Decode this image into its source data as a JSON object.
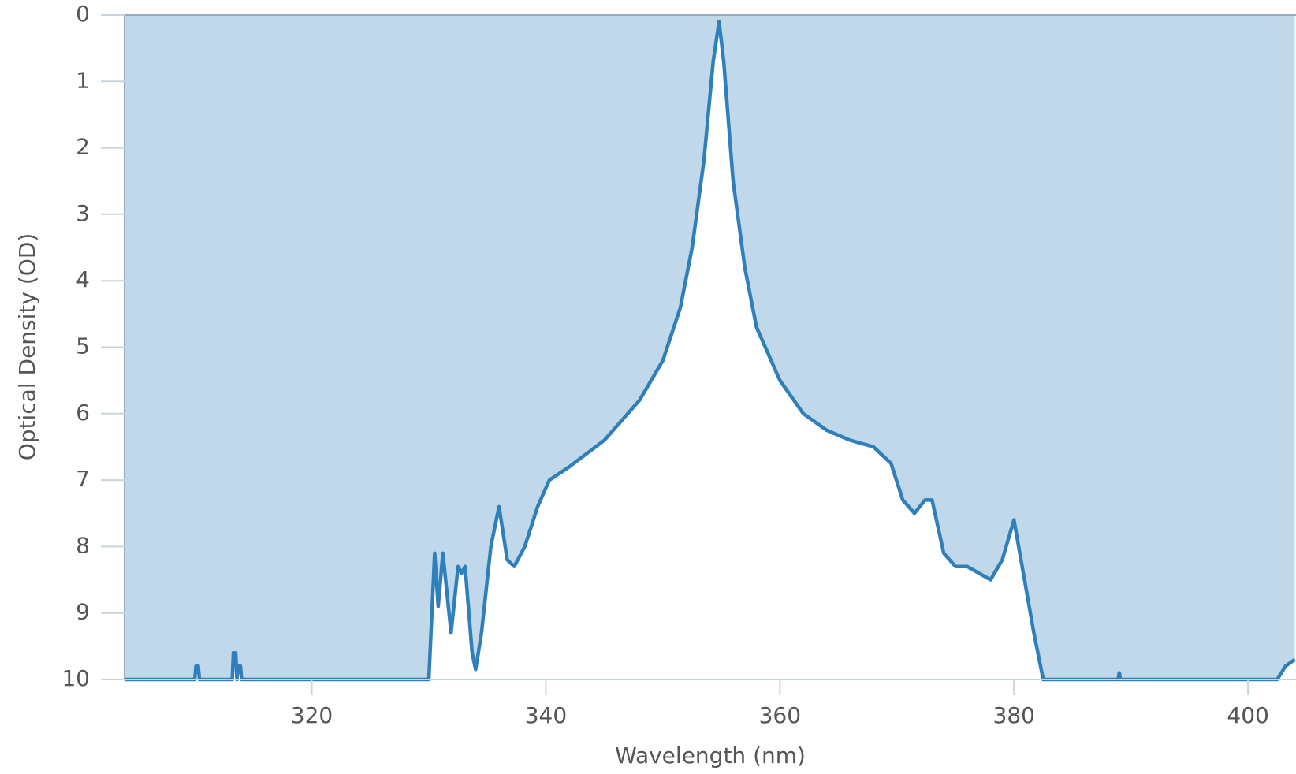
{
  "chart_data": {
    "type": "area",
    "x_label": "Wavelength (nm)",
    "y_label": "Optical Density (OD)",
    "x": [
      304,
      310.0,
      310.1,
      310.3,
      310.4,
      313.2,
      313.3,
      313.5,
      313.6,
      313.7,
      313.9,
      314.0,
      330.0,
      330.5,
      330.8,
      331.2,
      331.9,
      332.5,
      332.8,
      333.1,
      333.7,
      334.0,
      334.5,
      335.3,
      336.0,
      336.7,
      337.3,
      338.2,
      339.3,
      340.3,
      342,
      345,
      348,
      350,
      351.5,
      352.5,
      353.5,
      354.3,
      354.8,
      355.2,
      356,
      357,
      358,
      360,
      362,
      364,
      366,
      368,
      369.5,
      370.5,
      371.5,
      372.4,
      373,
      374,
      375,
      376,
      377,
      378,
      379,
      380,
      380.8,
      381.7,
      382.5,
      388.9,
      389,
      389.1,
      402.5,
      403.2,
      404
    ],
    "values": [
      10,
      10,
      9.8,
      9.8,
      10,
      10,
      9.6,
      9.6,
      10,
      9.8,
      9.8,
      10,
      10,
      8.1,
      8.9,
      8.1,
      9.3,
      8.3,
      8.4,
      8.3,
      9.6,
      9.85,
      9.3,
      8.0,
      7.4,
      8.2,
      8.3,
      8.0,
      7.4,
      7.0,
      6.8,
      6.4,
      5.8,
      5.2,
      4.4,
      3.5,
      2.2,
      0.7,
      0.1,
      0.7,
      2.5,
      3.8,
      4.7,
      5.5,
      6.0,
      6.25,
      6.4,
      6.5,
      6.75,
      7.3,
      7.5,
      7.3,
      7.3,
      8.1,
      8.3,
      8.3,
      8.4,
      8.5,
      8.2,
      7.6,
      8.4,
      9.3,
      10,
      10,
      9.9,
      10,
      10,
      9.8,
      9.7
    ],
    "color": "#2f7fba",
    "fill_color": "#c0d8ea",
    "xlim": [
      304,
      404.1
    ],
    "ylim": [
      10,
      0
    ],
    "xticks": [
      320,
      340,
      360,
      380,
      400
    ],
    "yticks": [
      0,
      1,
      2,
      3,
      4,
      5,
      6,
      7,
      8,
      9,
      10
    ]
  }
}
